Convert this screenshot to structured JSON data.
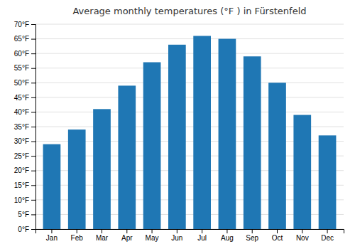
{
  "chart_data": {
    "type": "bar",
    "title": "Average monthly temperatures (°F ) in Fürstenfeld",
    "categories": [
      "Jan",
      "Feb",
      "Mar",
      "Apr",
      "May",
      "Jun",
      "Jul",
      "Aug",
      "Sep",
      "Oct",
      "Nov",
      "Dec"
    ],
    "values": [
      29,
      34,
      41,
      49,
      57,
      63,
      66,
      65,
      59,
      50,
      39,
      32
    ],
    "ylim": [
      0,
      70
    ],
    "yticks": [
      {
        "value": 0,
        "label": "0°F"
      },
      {
        "value": 5,
        "label": "5°F"
      },
      {
        "value": 10,
        "label": "10°F"
      },
      {
        "value": 15,
        "label": "15°F"
      },
      {
        "value": 20,
        "label": "20°F"
      },
      {
        "value": 25,
        "label": "25°F"
      },
      {
        "value": 30,
        "label": "30°F"
      },
      {
        "value": 35,
        "label": "35°F"
      },
      {
        "value": 40,
        "label": "40°F"
      },
      {
        "value": 45,
        "label": "45°F"
      },
      {
        "value": 50,
        "label": "50°F"
      },
      {
        "value": 55,
        "label": "55°F"
      },
      {
        "value": 60,
        "label": "60°F"
      },
      {
        "value": 65,
        "label": "65°F"
      },
      {
        "value": 70,
        "label": "70°F"
      }
    ],
    "grid": true
  }
}
